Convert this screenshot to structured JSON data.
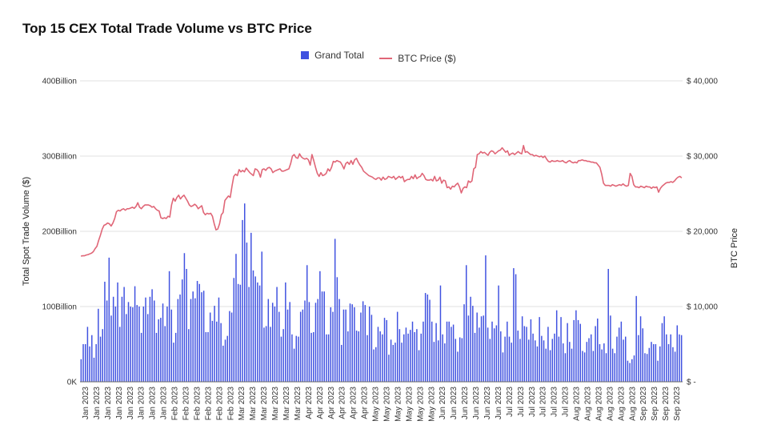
{
  "chart_data": {
    "type": "bar+line",
    "title": "Top 15 CEX Total Trade Volume vs BTC Price",
    "ylabel": "Total Spot Trade Volume ($)",
    "y2label": "BTC Price",
    "ylim": [
      0,
      400
    ],
    "y2lim": [
      0,
      40000
    ],
    "y_ticks": [
      {
        "value": 0,
        "label": "0K"
      },
      {
        "value": 100,
        "label": "100Billion"
      },
      {
        "value": 200,
        "label": "200Billion"
      },
      {
        "value": 300,
        "label": "300Billion"
      },
      {
        "value": 400,
        "label": "400Billion"
      }
    ],
    "y2_ticks": [
      {
        "value": 0,
        "label": "$ -"
      },
      {
        "value": 10000,
        "label": "$ 10,000"
      },
      {
        "value": 20000,
        "label": "$ 20,000"
      },
      {
        "value": 30000,
        "label": "$ 30,000"
      },
      {
        "value": 40000,
        "label": "$ 40,000"
      }
    ],
    "legend": {
      "position": "top",
      "bar_label": "Grand Total",
      "line_label": "BTC Price ($)"
    },
    "grid": true,
    "colors": {
      "bar": "#3f51e0",
      "line": "#e06677",
      "grid": "#e2e2e2"
    },
    "x_tick_labels": [
      "Jan 2023",
      "Jan 2023",
      "Jan 2023",
      "Jan 2023",
      "Jan 2023",
      "Jan 2023",
      "Jan 2023",
      "Jan 2023",
      "Feb 2023",
      "Feb 2023",
      "Feb 2023",
      "Feb 2023",
      "Feb 2023",
      "Feb 2023",
      "Mar 2023",
      "Mar 2023",
      "Mar 2023",
      "Mar 2023",
      "Mar 2023",
      "Mar 2023",
      "Apr 2023",
      "Apr 2023",
      "Apr 2023",
      "Apr 2023",
      "Apr 2023",
      "Apr 2023",
      "May 2023",
      "May 2023",
      "May 2023",
      "May 2023",
      "May 2023",
      "May 2023",
      "Jun 2023",
      "Jun 2023",
      "Jun 2023",
      "Jun 2023",
      "Jun 2023",
      "Jun 2023",
      "Jul 2023",
      "Jul 2023",
      "Jul 2023",
      "Jul 2023",
      "Jul 2023",
      "Jul 2023",
      "Aug 2023",
      "Aug 2023",
      "Aug 2023",
      "Aug 2023",
      "Aug 2023",
      "Aug 2023",
      "Sep 2023",
      "Sep 2023",
      "Sep 2023",
      "Sep 2023"
    ],
    "series": [
      {
        "name": "Grand Total",
        "kind": "bar",
        "values": [
          30,
          50,
          50,
          73,
          47,
          62,
          32,
          50,
          97,
          60,
          70,
          133,
          108,
          165,
          88,
          113,
          100,
          132,
          73,
          113,
          126,
          90,
          106,
          100,
          99,
          127,
          102,
          100,
          65,
          100,
          112,
          90,
          113,
          123,
          108,
          65,
          83,
          85,
          104,
          74,
          100,
          147,
          96,
          52,
          65,
          110,
          116,
          136,
          171,
          150,
          70,
          110,
          120,
          111,
          134,
          130,
          119,
          121,
          66,
          66,
          92,
          81,
          101,
          80,
          112,
          78,
          48,
          56,
          61,
          94,
          92,
          138,
          170,
          130,
          129,
          215,
          237,
          185,
          126,
          198,
          148,
          140,
          132,
          128,
          173,
          72,
          74,
          110,
          73,
          105,
          100,
          126,
          93,
          60,
          70,
          132,
          96,
          106,
          63,
          44,
          61,
          60,
          93,
          96,
          108,
          155,
          106,
          65,
          66,
          105,
          110,
          147,
          120,
          120,
          63,
          63,
          99,
          93,
          190,
          139,
          110,
          49,
          96,
          96,
          67,
          104,
          103,
          99,
          68,
          67,
          92,
          107,
          102,
          62,
          100,
          89,
          43,
          46,
          73,
          67,
          63,
          85,
          82,
          36,
          56,
          49,
          52,
          93,
          70,
          52,
          63,
          72,
          64,
          69,
          80,
          66,
          70,
          42,
          64,
          80,
          118,
          116,
          109,
          80,
          53,
          78,
          55,
          128,
          63,
          51,
          80,
          80,
          73,
          76,
          57,
          40,
          59,
          58,
          103,
          155,
          88,
          113,
          101,
          65,
          92,
          72,
          87,
          88,
          168,
          72,
          57,
          80,
          71,
          75,
          128,
          67,
          39,
          60,
          80,
          60,
          52,
          151,
          143,
          68,
          57,
          87,
          74,
          73,
          56,
          83,
          64,
          55,
          47,
          86,
          61,
          55,
          44,
          73,
          42,
          57,
          64,
          95,
          60,
          86,
          51,
          38,
          78,
          53,
          44,
          82,
          95,
          82,
          77,
          41,
          39,
          53,
          58,
          63,
          41,
          74,
          84,
          50,
          43,
          51,
          38,
          150,
          88,
          44,
          38,
          60,
          72,
          80,
          56,
          60,
          28,
          25,
          30,
          35,
          114,
          62,
          87,
          71,
          38,
          37,
          45,
          53,
          50,
          50,
          28,
          47,
          78,
          87,
          63,
          50,
          63,
          46,
          40,
          75,
          63,
          62
        ]
      },
      {
        "name": "BTC Price ($)",
        "kind": "line",
        "values": [
          16700,
          16750,
          16750,
          16850,
          16900,
          17000,
          17100,
          17300,
          17700,
          18000,
          18800,
          19500,
          20300,
          20800,
          20900,
          21100,
          21000,
          20700,
          21100,
          21700,
          22600,
          22800,
          22700,
          22900,
          23000,
          22800,
          23000,
          23000,
          23100,
          23200,
          23050,
          23300,
          23800,
          23200,
          23000,
          23300,
          23500,
          23500,
          23500,
          23400,
          23200,
          23300,
          23000,
          22800,
          22700,
          21800,
          21700,
          21800,
          21700,
          22000,
          21900,
          23500,
          24400,
          24000,
          24500,
          24800,
          24300,
          24600,
          24800,
          24400,
          24000,
          23500,
          23300,
          23400,
          23600,
          23400,
          23000,
          23200,
          23400,
          22500,
          22200,
          22400,
          22300,
          22400,
          22000,
          21000,
          20200,
          20300,
          21000,
          22200,
          22500,
          24100,
          24400,
          24700,
          24500,
          26000,
          27300,
          27600,
          27400,
          28200,
          27900,
          28100,
          27900,
          28400,
          28100,
          27800,
          27600,
          27400,
          28300,
          28200,
          27900,
          27200,
          28200,
          28300,
          28100,
          28400,
          28500,
          28300,
          27800,
          28000,
          28100,
          28200,
          28300,
          28000,
          28000,
          28100,
          28200,
          28300,
          29000,
          30000,
          30200,
          29800,
          29700,
          30300,
          29900,
          29700,
          29600,
          29700,
          29500,
          28800,
          30200,
          29400,
          28500,
          27700,
          27300,
          27800,
          27400,
          27500,
          27700,
          28300,
          28000,
          28500,
          29300,
          29200,
          29400,
          29300,
          29200,
          28800,
          28300,
          29000,
          29200,
          28900,
          29400,
          28900,
          29500,
          29700,
          29200,
          28800,
          28500,
          28000,
          27800,
          27600,
          27400,
          27300,
          27200,
          27000,
          26900,
          27100,
          27100,
          26800,
          27200,
          26900,
          27000,
          27300,
          27200,
          27100,
          27300,
          26900,
          27100,
          27300,
          27100,
          27300,
          26600,
          26800,
          26900,
          26900,
          27300,
          27000,
          27500,
          27000,
          27200,
          27300,
          27700,
          27400,
          26900,
          26800,
          26800,
          26900,
          26700,
          27300,
          26700,
          26800,
          27200,
          26400,
          26800,
          26700,
          25800,
          25900,
          25600,
          26000,
          25900,
          26200,
          26400,
          25900,
          25100,
          25700,
          25900,
          25800,
          26700,
          26500,
          26700,
          28300,
          28500,
          30200,
          30300,
          30600,
          30400,
          30500,
          30300,
          30100,
          30500,
          30700,
          30600,
          30300,
          30500,
          30700,
          30800,
          31100,
          30800,
          30500,
          30700,
          30100,
          30300,
          30400,
          30200,
          30400,
          30600,
          30400,
          30300,
          31400,
          30500,
          30600,
          30400,
          30200,
          30200,
          30000,
          30100,
          30000,
          29900,
          30000,
          29800,
          30000,
          29600,
          29300,
          29200,
          29400,
          29300,
          29300,
          29400,
          29300,
          29300,
          29400,
          29200,
          29100,
          29300,
          29400,
          29200,
          29100,
          29200,
          29100,
          29400,
          29400,
          29500,
          29400,
          29400,
          29300,
          29300,
          29200,
          29200,
          29100,
          29100,
          28800,
          28500,
          27600,
          26400,
          26100,
          26100,
          26100,
          26000,
          26200,
          26100,
          26000,
          26100,
          26200,
          26100,
          26300,
          26100,
          26000,
          26100,
          27700,
          27300,
          26200,
          25900,
          25900,
          25800,
          26000,
          25900,
          25800,
          26000,
          25900,
          25900,
          25700,
          25900,
          25800,
          25900,
          25200,
          25700,
          26000,
          26200,
          26400,
          26500,
          26500,
          26600,
          26500,
          26700,
          27000,
          27200,
          27300,
          27100
        ]
      }
    ]
  }
}
